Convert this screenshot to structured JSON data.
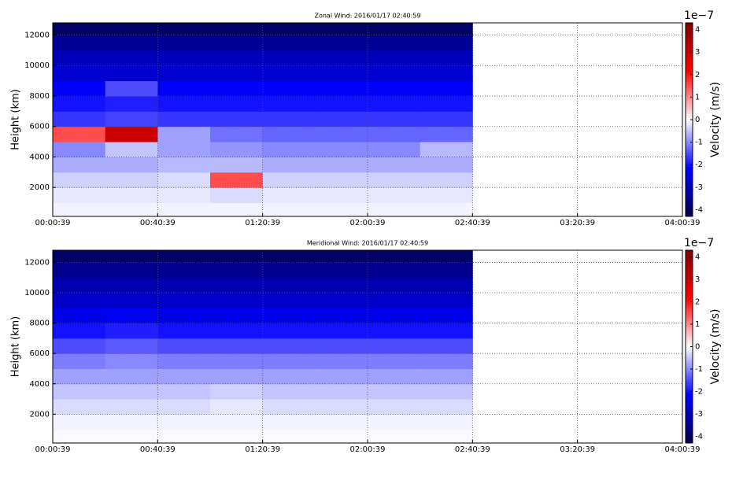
{
  "chart_data": [
    {
      "type": "heatmap",
      "title": "Zonal Wind: 2016/01/17 02:40:59",
      "ylabel": "Height (km)",
      "xlim": [
        39,
        14439
      ],
      "xticks": [
        {
          "value": 39,
          "label": "00:00:39"
        },
        {
          "value": 2439,
          "label": "00:40:39"
        },
        {
          "value": 4839,
          "label": "01:20:39"
        },
        {
          "value": 7239,
          "label": "02:00:39"
        },
        {
          "value": 9639,
          "label": "02:40:39"
        },
        {
          "value": 12039,
          "label": "03:20:39"
        },
        {
          "value": 14439,
          "label": "04:00:39"
        }
      ],
      "ylim": [
        100,
        12800
      ],
      "yticks": [
        2000,
        4000,
        6000,
        8000,
        10000,
        12000
      ],
      "grid": true,
      "xbins": [
        39,
        1239,
        2439,
        3639,
        4839,
        6039,
        7239,
        8439,
        9639
      ],
      "ybins": [
        100,
        1000,
        2000,
        3000,
        4000,
        5000,
        6000,
        7000,
        8000,
        9000,
        10000,
        11000,
        12000,
        12800
      ],
      "z": [
        [
          -0.1,
          -0.1,
          -0.1,
          -0.1,
          -0.1,
          -0.1,
          -0.1,
          -0.1
        ],
        [
          -0.2,
          -0.2,
          -0.2,
          -0.3,
          -0.2,
          -0.2,
          -0.2,
          -0.2
        ],
        [
          -0.4,
          -0.4,
          -0.3,
          1.5,
          -0.4,
          -0.4,
          -0.4,
          -0.4
        ],
        [
          -0.7,
          -0.7,
          -0.6,
          -0.6,
          -0.7,
          -0.7,
          -0.7,
          -0.7
        ],
        [
          -1.0,
          -0.5,
          -0.8,
          -0.9,
          -1.0,
          -1.0,
          -1.0,
          -0.6
        ],
        [
          1.5,
          3.0,
          -0.8,
          -1.2,
          -1.3,
          -1.3,
          -1.3,
          -1.3
        ],
        [
          -1.7,
          -1.6,
          -1.7,
          -1.7,
          -1.7,
          -1.7,
          -1.7,
          -1.7
        ],
        [
          -2.0,
          -1.9,
          -2.0,
          -2.0,
          -2.0,
          -2.0,
          -2.0,
          -2.0
        ],
        [
          -2.2,
          -1.5,
          -2.2,
          -2.2,
          -2.2,
          -2.2,
          -2.2,
          -2.2
        ],
        [
          -2.7,
          -2.7,
          -2.7,
          -2.7,
          -2.7,
          -2.7,
          -2.7,
          -2.7
        ],
        [
          -3.0,
          -3.0,
          -3.0,
          -3.0,
          -3.0,
          -3.0,
          -3.0,
          -3.0
        ],
        [
          -3.4,
          -3.4,
          -3.4,
          -3.4,
          -3.4,
          -3.4,
          -3.4,
          -3.4
        ],
        [
          -4.0,
          -4.0,
          -4.0,
          -4.0,
          -4.0,
          -4.0,
          -4.0,
          -4.0
        ]
      ],
      "colorbar": {
        "label": "Velocity (m/s)",
        "offset_text": "1e−7",
        "cmap": "seismic",
        "clim": [
          -4.3,
          4.3
        ],
        "ticks": [
          -4,
          -3,
          -2,
          -1,
          0,
          1,
          2,
          3,
          4
        ]
      }
    },
    {
      "type": "heatmap",
      "title": "Meridional Wind: 2016/01/17 02:40:59",
      "ylabel": "Height (km)",
      "xlim": [
        39,
        14439
      ],
      "xticks": [
        {
          "value": 39,
          "label": "00:00:39"
        },
        {
          "value": 2439,
          "label": "00:40:39"
        },
        {
          "value": 4839,
          "label": "01:20:39"
        },
        {
          "value": 7239,
          "label": "02:00:39"
        },
        {
          "value": 9639,
          "label": "02:40:39"
        },
        {
          "value": 12039,
          "label": "03:20:39"
        },
        {
          "value": 14439,
          "label": "04:00:39"
        }
      ],
      "ylim": [
        100,
        12800
      ],
      "yticks": [
        2000,
        4000,
        6000,
        8000,
        10000,
        12000
      ],
      "grid": true,
      "xbins": [
        39,
        1239,
        2439,
        3639,
        4839,
        6039,
        7239,
        8439,
        9639
      ],
      "ybins": [
        100,
        1000,
        2000,
        3000,
        4000,
        5000,
        6000,
        7000,
        8000,
        9000,
        10000,
        11000,
        12000,
        12800
      ],
      "z": [
        [
          -0.05,
          -0.05,
          -0.05,
          -0.05,
          -0.05,
          -0.05,
          -0.05,
          -0.05
        ],
        [
          -0.1,
          -0.1,
          -0.1,
          -0.1,
          -0.1,
          -0.1,
          -0.1,
          -0.1
        ],
        [
          -0.3,
          -0.3,
          -0.3,
          -0.2,
          -0.3,
          -0.3,
          -0.3,
          -0.3
        ],
        [
          -0.5,
          -0.5,
          -0.5,
          -0.4,
          -0.5,
          -0.5,
          -0.5,
          -0.5
        ],
        [
          -0.8,
          -0.8,
          -0.8,
          -0.8,
          -0.8,
          -0.8,
          -0.8,
          -0.8
        ],
        [
          -1.1,
          -1.0,
          -1.1,
          -1.1,
          -1.1,
          -1.1,
          -1.1,
          -1.1
        ],
        [
          -1.5,
          -1.4,
          -1.5,
          -1.5,
          -1.5,
          -1.5,
          -1.5,
          -1.5
        ],
        [
          -2.0,
          -1.9,
          -2.0,
          -2.0,
          -2.0,
          -2.0,
          -2.0,
          -2.0
        ],
        [
          -2.4,
          -2.3,
          -2.4,
          -2.4,
          -2.4,
          -2.4,
          -2.4,
          -2.4
        ],
        [
          -2.8,
          -2.8,
          -2.8,
          -2.8,
          -2.8,
          -2.8,
          -2.8,
          -2.8
        ],
        [
          -3.1,
          -3.1,
          -3.1,
          -3.1,
          -3.1,
          -3.1,
          -3.1,
          -3.1
        ],
        [
          -3.5,
          -3.5,
          -3.5,
          -3.5,
          -3.5,
          -3.5,
          -3.5,
          -3.5
        ],
        [
          -4.0,
          -4.0,
          -4.0,
          -4.0,
          -4.0,
          -4.0,
          -4.0,
          -4.0
        ]
      ],
      "colorbar": {
        "label": "Velocity (m/s)",
        "offset_text": "1e−7",
        "cmap": "seismic",
        "clim": [
          -4.3,
          4.3
        ],
        "ticks": [
          -4,
          -3,
          -2,
          -1,
          0,
          1,
          2,
          3,
          4
        ]
      }
    }
  ]
}
